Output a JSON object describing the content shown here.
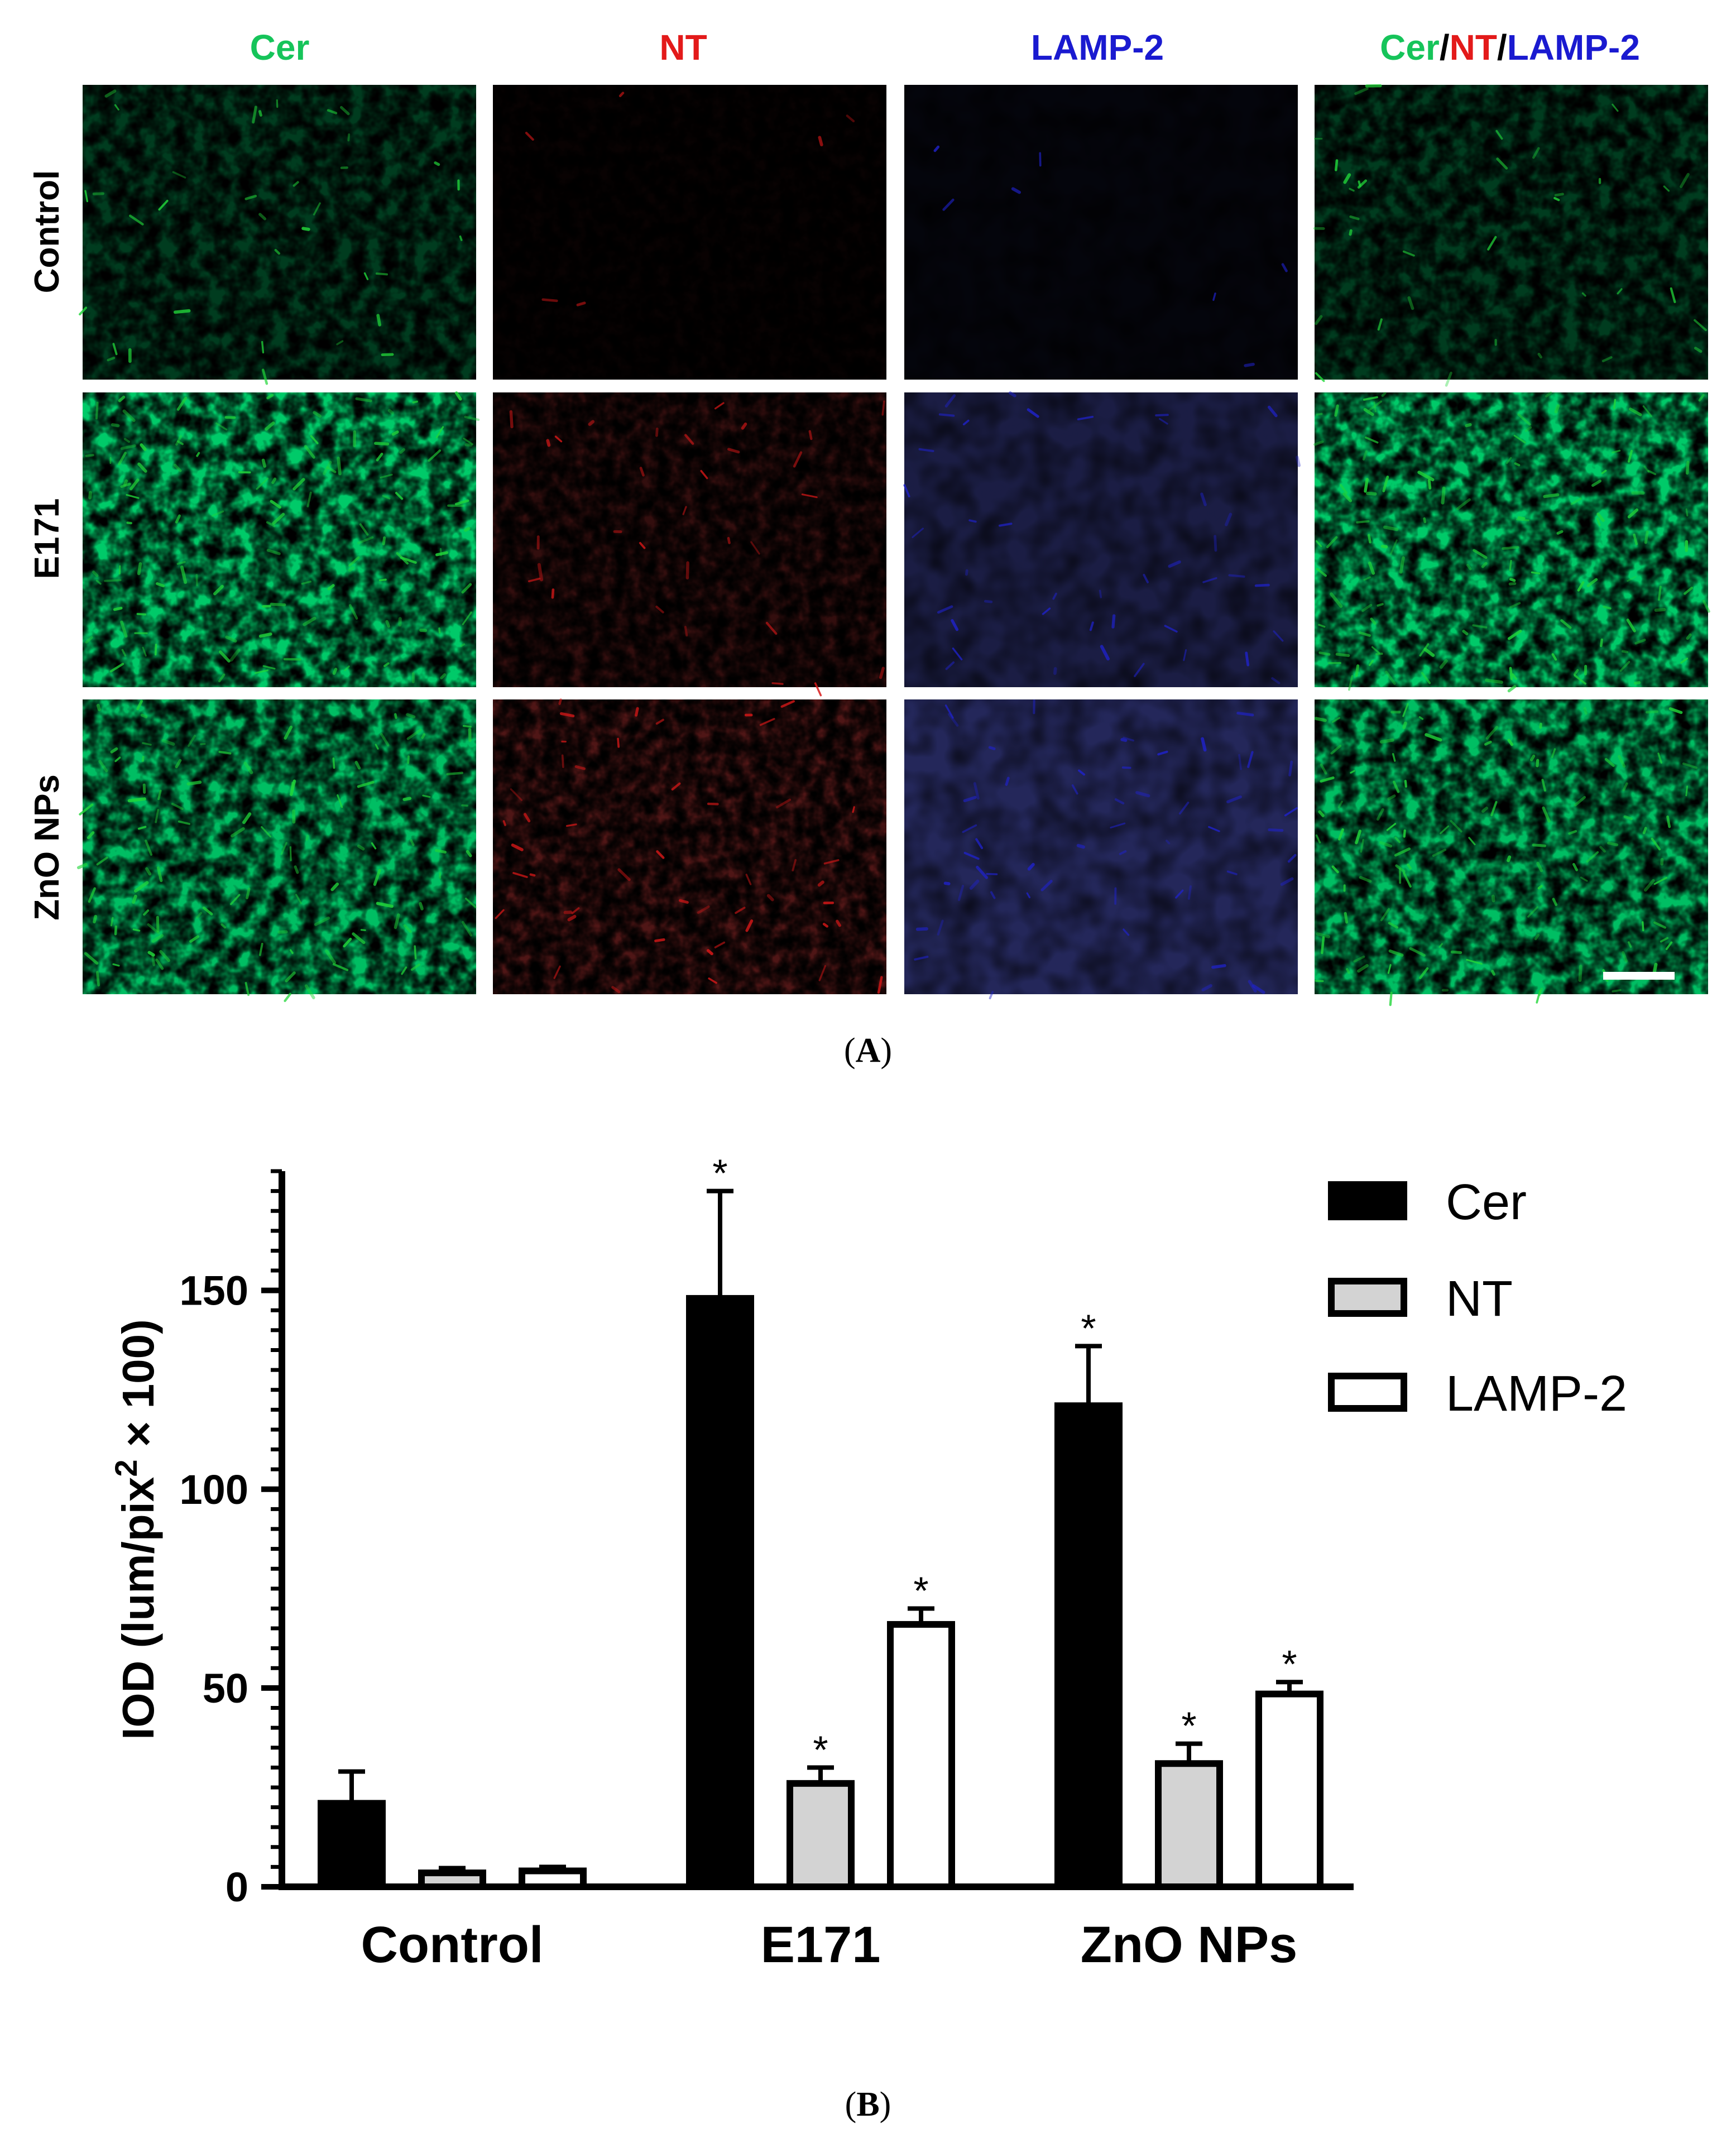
{
  "figure_a": {
    "panel_label_open": "(",
    "panel_label_letter": "A",
    "panel_label_close": ")",
    "columns": [
      {
        "label": "Cer",
        "color": "#16c45a"
      },
      {
        "label": "NT",
        "color": "#e31a1a"
      },
      {
        "label": "LAMP-2",
        "color": "#1a1ad0"
      },
      {
        "label": "Cer/NT/LAMP-2",
        "color": "#000000"
      }
    ],
    "merge_label_parts": [
      {
        "text": "Cer",
        "color": "#16c45a"
      },
      {
        "text": "/",
        "color": "#000000"
      },
      {
        "text": "NT",
        "color": "#e31a1a"
      },
      {
        "text": "/",
        "color": "#000000"
      },
      {
        "text": "LAMP-2",
        "color": "#1a1ad0"
      }
    ],
    "rows": [
      "Control",
      "E171",
      "ZnO NPs"
    ],
    "channel_colors": {
      "green": "#22d63a",
      "red": "#d81818",
      "blue": "#1f22c8"
    },
    "intensity": [
      [
        0.25,
        0.04,
        0.05,
        0.25
      ],
      [
        0.85,
        0.22,
        0.3,
        0.85
      ],
      [
        0.8,
        0.34,
        0.4,
        0.8
      ]
    ]
  },
  "figure_b": {
    "panel_label_open": "(",
    "panel_label_letter": "B",
    "panel_label_close": ")"
  },
  "chart_data": {
    "type": "bar",
    "categories": [
      "Control",
      "E171",
      "ZnO NPs"
    ],
    "series": [
      {
        "name": "Cer",
        "values": [
          21,
          148,
          121
        ],
        "errors": [
          8,
          27,
          15
        ],
        "fill": "#000000",
        "significant": [
          false,
          true,
          true
        ]
      },
      {
        "name": "NT",
        "values": [
          3.5,
          26,
          31
        ],
        "errors": [
          1.2,
          4,
          5
        ],
        "fill": "#d3d3d3",
        "significant": [
          false,
          true,
          true
        ]
      },
      {
        "name": "LAMP-2",
        "values": [
          4,
          66,
          48.5
        ],
        "errors": [
          1,
          4,
          3
        ],
        "fill": "#ffffff",
        "significant": [
          false,
          true,
          true
        ]
      }
    ],
    "ylabel_main": "IOD (lum/pix",
    "ylabel_sup": "2",
    "ylabel_tail": " × 100)",
    "ylim": [
      0,
      180
    ],
    "yticks": [
      0,
      50,
      100,
      150
    ],
    "minor_tick_step": 5,
    "significance_marker": "*",
    "legend_position": "top-right",
    "grid": false
  }
}
